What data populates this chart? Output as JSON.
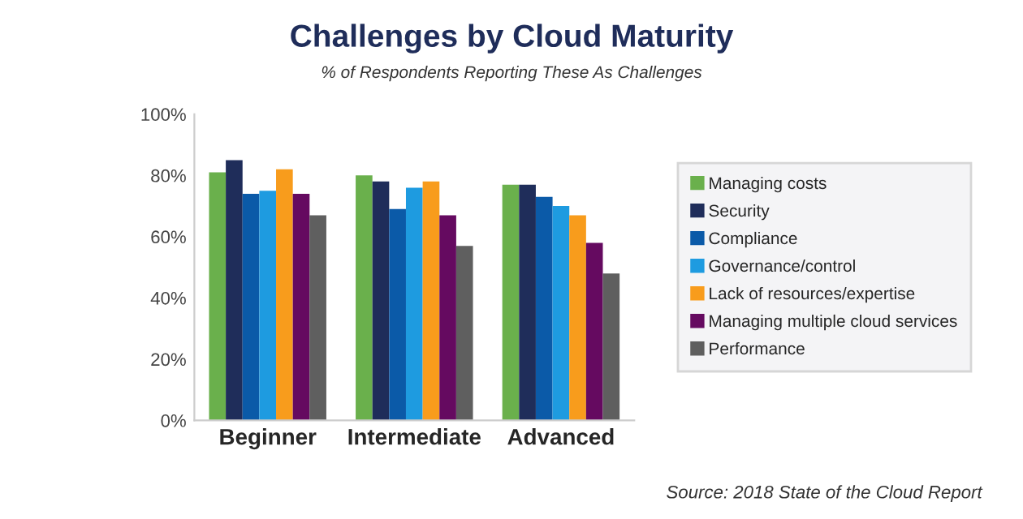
{
  "chart_data": {
    "type": "bar",
    "title": "Challenges by Cloud Maturity",
    "subtitle": "% of Respondents Reporting These As Challenges",
    "categories": [
      "Beginner",
      "Intermediate",
      "Advanced"
    ],
    "series": [
      {
        "name": "Managing costs",
        "color": "#6ab04c",
        "values": [
          81,
          80,
          77
        ]
      },
      {
        "name": "Security",
        "color": "#1f2d5a",
        "values": [
          85,
          78,
          77
        ]
      },
      {
        "name": "Compliance",
        "color": "#0b5aa8",
        "values": [
          74,
          69,
          73
        ]
      },
      {
        "name": "Governance/control",
        "color": "#1e9be0",
        "values": [
          75,
          76,
          70
        ]
      },
      {
        "name": "Lack of resources/expertise",
        "color": "#f89c1c",
        "values": [
          82,
          78,
          67
        ]
      },
      {
        "name": "Managing multiple cloud services",
        "color": "#650a60",
        "values": [
          74,
          67,
          58
        ]
      },
      {
        "name": "Performance",
        "color": "#5f5f5f",
        "values": [
          67,
          57,
          48
        ]
      }
    ],
    "ylim": [
      0,
      100
    ],
    "yticks": [
      {
        "value": 0,
        "label": "0%"
      },
      {
        "value": 20,
        "label": "20%"
      },
      {
        "value": 40,
        "label": "40%"
      },
      {
        "value": 60,
        "label": "60%"
      },
      {
        "value": 80,
        "label": "80%"
      },
      {
        "value": 100,
        "label": "100%"
      }
    ],
    "grid": false,
    "legend": "right",
    "annotations": [
      "Source: 2018 State of the Cloud Report"
    ]
  }
}
